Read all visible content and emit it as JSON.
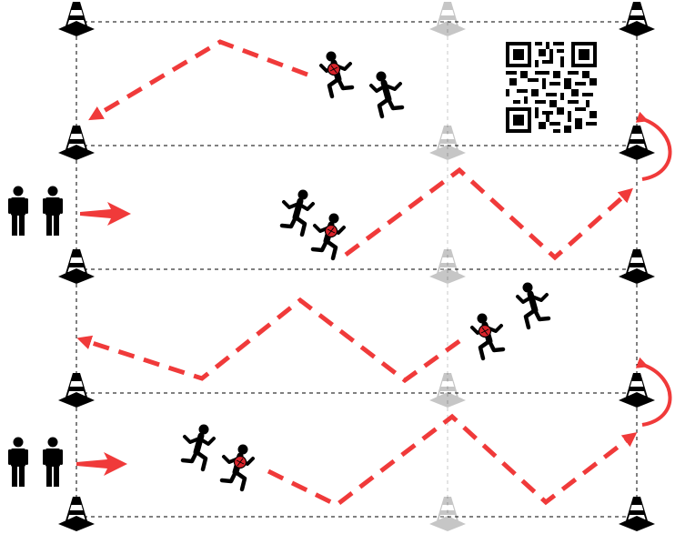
{
  "colors": {
    "arrow": "#f03a3a",
    "cone": "#000000",
    "cone_faded": "#c8c8c8",
    "grid_line": "#000000",
    "grid_line_faded": "#c8c8c8",
    "figure": "#000000",
    "figure_accent": "#d9232a"
  },
  "icons": {
    "cone": "traffic-cone-icon",
    "runner": "running-person-icon",
    "runner_with_ball": "running-person-with-ball-icon",
    "waiting_player": "standing-person-icon",
    "qr": "qr-code-icon"
  }
}
